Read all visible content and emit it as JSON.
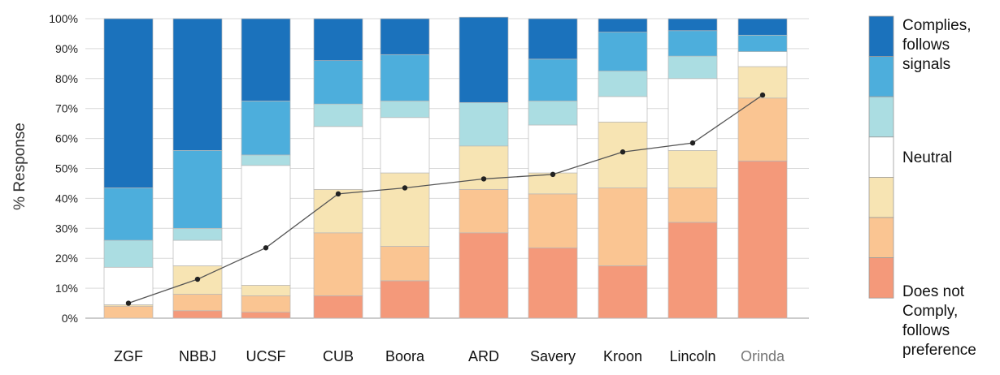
{
  "chart_data": {
    "type": "bar",
    "stacked": true,
    "ylabel": "% Response",
    "ylim": [
      0,
      100
    ],
    "yticks": [
      "0%",
      "10%",
      "20%",
      "30%",
      "40%",
      "50%",
      "60%",
      "70%",
      "80%",
      "90%",
      "100%"
    ],
    "grid": true,
    "legend_position": "right",
    "categories": [
      "ZGF",
      "NBBJ",
      "UCSF",
      "CUB",
      "Boora",
      "ARD",
      "Savery",
      "Kroon",
      "Lincoln",
      "Orinda"
    ],
    "series": [
      {
        "values": [
          0,
          2.5,
          2,
          7.5,
          12.5,
          28.5,
          23.5,
          17.5,
          32,
          52.5
        ],
        "color": "#f4997a"
      },
      {
        "values": [
          4,
          5.5,
          5.5,
          21,
          11.5,
          14.5,
          18,
          26,
          11.5,
          21
        ],
        "color": "#fac592"
      },
      {
        "values": [
          0.5,
          9.5,
          3.5,
          14.5,
          24.5,
          14.5,
          7,
          22,
          12.5,
          10.5
        ],
        "color": "#f7e4b3"
      },
      {
        "values": [
          12.5,
          8.5,
          40,
          21,
          18.5,
          0,
          16,
          8.5,
          24,
          5
        ],
        "color": "#ffffff"
      },
      {
        "values": [
          9,
          4,
          3.5,
          7.5,
          5.5,
          14.5,
          8,
          8.5,
          7.5,
          0
        ],
        "color": "#abdde2"
      },
      {
        "values": [
          17.5,
          26,
          18,
          14.5,
          15.5,
          0,
          14,
          13,
          8.5,
          5.5
        ],
        "color": "#4daedc"
      },
      {
        "values": [
          56.5,
          44,
          27.5,
          14,
          12,
          28.5,
          13.5,
          4.5,
          4,
          5.5
        ],
        "color": "#1b72bc"
      }
    ],
    "line_values": [
      5,
      13,
      23.5,
      41.5,
      43.5,
      46.5,
      48,
      55.5,
      58.5,
      74.5
    ],
    "legend_labels": [
      {
        "lines": [
          "Complies,",
          "follows",
          "signals"
        ]
      },
      {
        "lines": [
          "Neutral"
        ]
      },
      {
        "lines": [
          "Does not",
          "Comply,",
          "follows",
          "preference"
        ]
      }
    ]
  }
}
